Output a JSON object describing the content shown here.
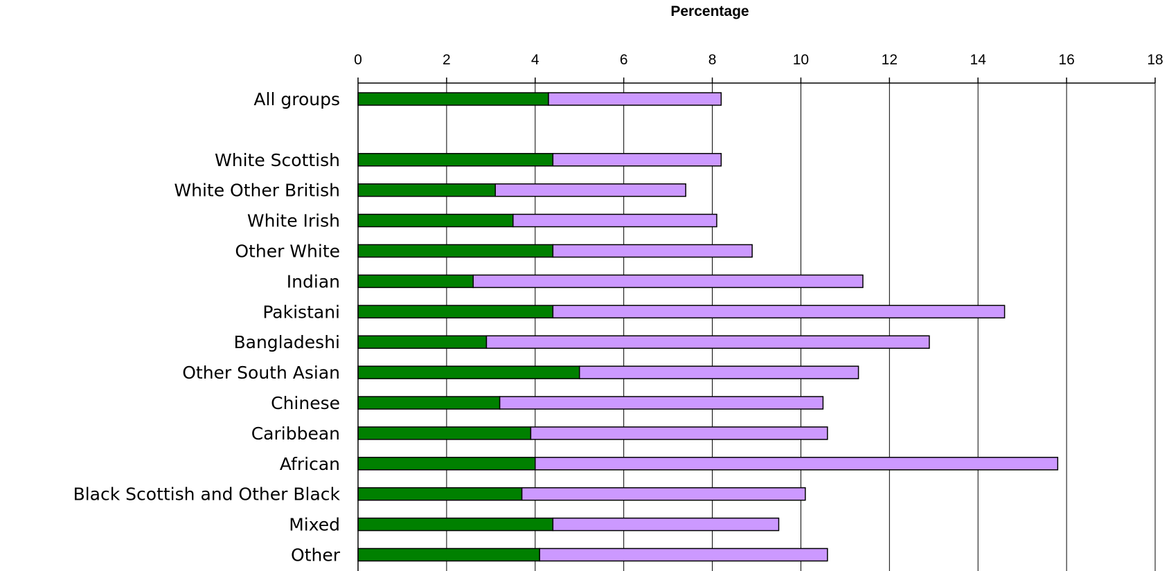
{
  "chart_data": {
    "type": "bar",
    "orientation": "horizontal",
    "stacked": true,
    "xlabel": "Percentage",
    "xlim": [
      0,
      18
    ],
    "x_ticks": [
      0,
      2,
      4,
      6,
      8,
      10,
      12,
      14,
      16,
      18
    ],
    "grid": "vertical",
    "legend": "none",
    "categories": [
      "All groups",
      "",
      "White Scottish",
      "White Other British",
      "White Irish",
      "Other White",
      "Indian",
      "Pakistani",
      "Bangladeshi",
      "Other South Asian",
      "Chinese",
      "Caribbean",
      "African",
      "Black Scottish and Other Black",
      "Mixed",
      "Other"
    ],
    "series": [
      {
        "color": "#008000",
        "values": [
          4.3,
          null,
          4.4,
          3.1,
          3.5,
          4.4,
          2.6,
          4.4,
          2.9,
          5.0,
          3.2,
          3.9,
          4.0,
          3.7,
          4.4,
          4.1
        ]
      },
      {
        "color": "#CC99FF",
        "values": [
          3.9,
          null,
          3.8,
          4.3,
          4.6,
          4.5,
          8.8,
          10.2,
          10.0,
          6.3,
          7.3,
          6.7,
          11.8,
          6.4,
          5.1,
          6.5
        ]
      }
    ]
  }
}
